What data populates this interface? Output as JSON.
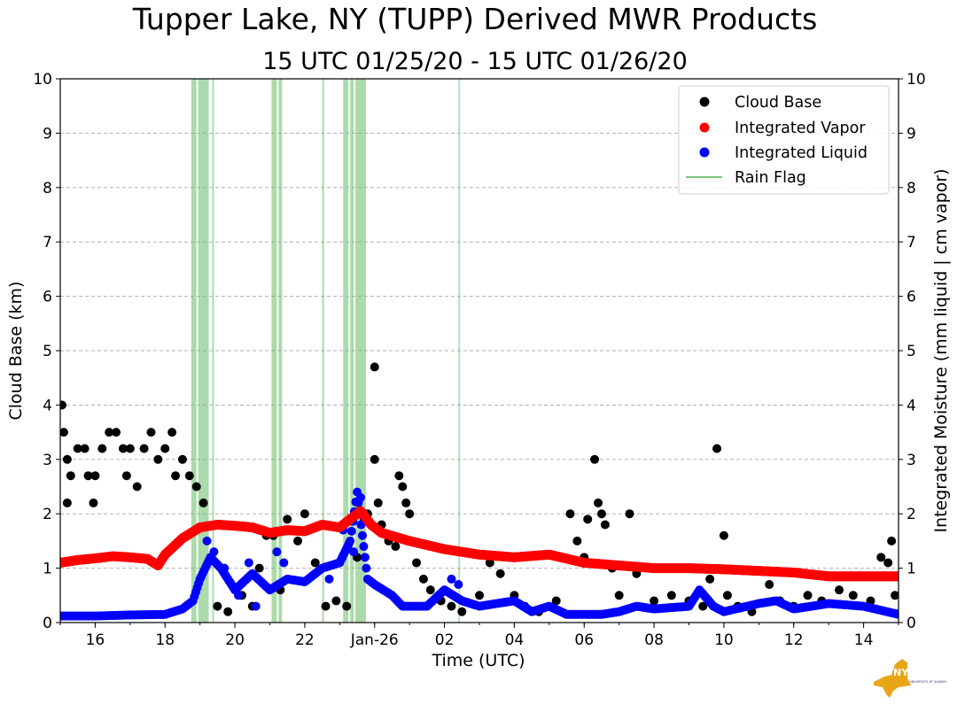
{
  "chart_data": {
    "type": "scatter",
    "title": "Tupper Lake, NY (TUPP) Derived MWR Products",
    "subtitle": "15 UTC 01/25/20 - 15 UTC 01/26/20",
    "xlabel": "Time (UTC)",
    "ylabel": "Cloud Base (km)",
    "ylabel_right": "Integrated Moisture (mm liquid | cm vapor)",
    "x_range_hours_utc": [
      15,
      39
    ],
    "ylim": [
      0,
      10
    ],
    "ylim_right": [
      0,
      10
    ],
    "grid": "horizontal dashed",
    "legend_position": "top-right",
    "x_ticks": [
      {
        "hour": 16,
        "label": "16"
      },
      {
        "hour": 18,
        "label": "18"
      },
      {
        "hour": 20,
        "label": "20"
      },
      {
        "hour": 22,
        "label": "22"
      },
      {
        "hour": 24,
        "label": "Jan-26"
      },
      {
        "hour": 26,
        "label": "02"
      },
      {
        "hour": 28,
        "label": "04"
      },
      {
        "hour": 30,
        "label": "06"
      },
      {
        "hour": 32,
        "label": "08"
      },
      {
        "hour": 34,
        "label": "10"
      },
      {
        "hour": 36,
        "label": "12"
      },
      {
        "hour": 38,
        "label": "14"
      }
    ],
    "y_ticks": [
      "0",
      "1",
      "2",
      "3",
      "4",
      "5",
      "6",
      "7",
      "8",
      "9",
      "10"
    ],
    "series": [
      {
        "name": "Cloud Base",
        "color": "#000000",
        "marker": "circle",
        "points": [
          [
            15.05,
            4.0
          ],
          [
            15.1,
            3.5
          ],
          [
            15.2,
            3.0
          ],
          [
            15.3,
            2.7
          ],
          [
            15.2,
            2.2
          ],
          [
            15.5,
            3.2
          ],
          [
            15.7,
            3.2
          ],
          [
            15.8,
            2.7
          ],
          [
            16.0,
            2.7
          ],
          [
            15.95,
            2.2
          ],
          [
            16.2,
            3.2
          ],
          [
            16.4,
            3.5
          ],
          [
            16.6,
            3.5
          ],
          [
            16.8,
            3.2
          ],
          [
            17.0,
            3.2
          ],
          [
            16.9,
            2.7
          ],
          [
            17.2,
            2.5
          ],
          [
            17.4,
            3.2
          ],
          [
            17.6,
            3.5
          ],
          [
            17.8,
            3.0
          ],
          [
            18.0,
            3.2
          ],
          [
            18.2,
            3.5
          ],
          [
            18.3,
            2.7
          ],
          [
            18.5,
            3.0
          ],
          [
            18.7,
            2.7
          ],
          [
            18.9,
            2.5
          ],
          [
            19.1,
            2.2
          ],
          [
            19.5,
            0.3
          ],
          [
            19.8,
            0.2
          ],
          [
            20.2,
            0.5
          ],
          [
            20.5,
            0.3
          ],
          [
            20.7,
            1.0
          ],
          [
            20.9,
            1.6
          ],
          [
            21.1,
            1.6
          ],
          [
            21.3,
            0.6
          ],
          [
            21.5,
            1.9
          ],
          [
            21.8,
            1.5
          ],
          [
            22.0,
            2.0
          ],
          [
            22.3,
            1.1
          ],
          [
            22.6,
            0.3
          ],
          [
            22.9,
            0.4
          ],
          [
            23.2,
            0.3
          ],
          [
            23.5,
            1.2
          ],
          [
            23.8,
            2.0
          ],
          [
            24.0,
            4.7
          ],
          [
            24.0,
            3.0
          ],
          [
            24.1,
            2.2
          ],
          [
            24.2,
            1.8
          ],
          [
            24.4,
            1.5
          ],
          [
            24.6,
            1.4
          ],
          [
            24.7,
            2.7
          ],
          [
            24.8,
            2.5
          ],
          [
            24.9,
            2.2
          ],
          [
            25.0,
            2.0
          ],
          [
            25.2,
            1.1
          ],
          [
            25.4,
            0.8
          ],
          [
            25.6,
            0.6
          ],
          [
            25.9,
            0.4
          ],
          [
            26.2,
            0.3
          ],
          [
            26.5,
            0.2
          ],
          [
            27.0,
            0.5
          ],
          [
            27.3,
            1.1
          ],
          [
            27.6,
            0.9
          ],
          [
            28.0,
            0.5
          ],
          [
            28.3,
            0.3
          ],
          [
            28.7,
            0.2
          ],
          [
            29.2,
            0.4
          ],
          [
            29.6,
            2.0
          ],
          [
            29.8,
            1.5
          ],
          [
            30.0,
            1.2
          ],
          [
            30.1,
            1.9
          ],
          [
            30.3,
            3.0
          ],
          [
            30.4,
            2.2
          ],
          [
            30.5,
            2.0
          ],
          [
            30.6,
            1.8
          ],
          [
            30.8,
            1.0
          ],
          [
            31.0,
            0.5
          ],
          [
            31.3,
            2.0
          ],
          [
            31.5,
            0.9
          ],
          [
            32.0,
            0.4
          ],
          [
            32.5,
            0.5
          ],
          [
            33.0,
            0.4
          ],
          [
            33.4,
            0.3
          ],
          [
            33.6,
            0.8
          ],
          [
            33.8,
            3.2
          ],
          [
            34.0,
            1.6
          ],
          [
            34.1,
            0.5
          ],
          [
            34.4,
            0.3
          ],
          [
            34.8,
            0.2
          ],
          [
            35.3,
            0.7
          ],
          [
            35.6,
            0.4
          ],
          [
            36.0,
            0.3
          ],
          [
            36.4,
            0.5
          ],
          [
            36.8,
            0.4
          ],
          [
            37.3,
            0.6
          ],
          [
            37.7,
            0.5
          ],
          [
            38.2,
            0.4
          ],
          [
            38.5,
            1.2
          ],
          [
            38.7,
            1.1
          ],
          [
            38.8,
            1.5
          ],
          [
            38.9,
            0.5
          ]
        ]
      },
      {
        "name": "Integrated Vapor",
        "color": "#ff0000",
        "marker": "circle",
        "curve": [
          [
            15.0,
            1.1
          ],
          [
            15.5,
            1.15
          ],
          [
            16.0,
            1.18
          ],
          [
            16.5,
            1.22
          ],
          [
            17.0,
            1.2
          ],
          [
            17.5,
            1.17
          ],
          [
            17.8,
            1.05
          ],
          [
            18.0,
            1.25
          ],
          [
            18.5,
            1.55
          ],
          [
            19.0,
            1.75
          ],
          [
            19.5,
            1.8
          ],
          [
            20.0,
            1.78
          ],
          [
            20.5,
            1.75
          ],
          [
            21.0,
            1.65
          ],
          [
            21.5,
            1.7
          ],
          [
            22.0,
            1.68
          ],
          [
            22.5,
            1.8
          ],
          [
            23.0,
            1.75
          ],
          [
            23.3,
            1.9
          ],
          [
            23.6,
            2.05
          ],
          [
            23.9,
            1.8
          ],
          [
            24.2,
            1.65
          ],
          [
            25.0,
            1.5
          ],
          [
            26.0,
            1.35
          ],
          [
            27.0,
            1.25
          ],
          [
            28.0,
            1.2
          ],
          [
            29.0,
            1.25
          ],
          [
            30.0,
            1.1
          ],
          [
            31.0,
            1.05
          ],
          [
            32.0,
            1.0
          ],
          [
            33.0,
            1.0
          ],
          [
            34.0,
            0.98
          ],
          [
            35.0,
            0.95
          ],
          [
            36.0,
            0.92
          ],
          [
            37.0,
            0.85
          ],
          [
            38.0,
            0.85
          ],
          [
            39.0,
            0.85
          ]
        ]
      },
      {
        "name": "Integrated Liquid",
        "color": "#0000ff",
        "marker": "circle",
        "curve": [
          [
            15.0,
            0.12
          ],
          [
            16.0,
            0.12
          ],
          [
            17.0,
            0.14
          ],
          [
            18.0,
            0.15
          ],
          [
            18.5,
            0.25
          ],
          [
            18.8,
            0.4
          ],
          [
            19.0,
            0.8
          ],
          [
            19.3,
            1.2
          ],
          [
            19.6,
            1.0
          ],
          [
            20.0,
            0.6
          ],
          [
            20.5,
            0.9
          ],
          [
            21.0,
            0.6
          ],
          [
            21.5,
            0.8
          ],
          [
            22.0,
            0.75
          ],
          [
            22.5,
            1.0
          ],
          [
            23.0,
            1.1
          ],
          [
            23.3,
            1.5
          ],
          [
            23.5,
            2.4
          ],
          [
            23.8,
            0.8
          ],
          [
            24.0,
            0.7
          ],
          [
            24.5,
            0.5
          ],
          [
            24.8,
            0.3
          ],
          [
            25.5,
            0.3
          ],
          [
            26.0,
            0.6
          ],
          [
            26.5,
            0.4
          ],
          [
            27.0,
            0.3
          ],
          [
            28.0,
            0.4
          ],
          [
            28.5,
            0.2
          ],
          [
            29.0,
            0.3
          ],
          [
            29.5,
            0.15
          ],
          [
            30.5,
            0.15
          ],
          [
            31.0,
            0.2
          ],
          [
            31.5,
            0.3
          ],
          [
            32.0,
            0.25
          ],
          [
            33.0,
            0.3
          ],
          [
            33.3,
            0.6
          ],
          [
            33.7,
            0.3
          ],
          [
            34.0,
            0.2
          ],
          [
            35.0,
            0.35
          ],
          [
            35.5,
            0.4
          ],
          [
            36.0,
            0.25
          ],
          [
            37.0,
            0.35
          ],
          [
            38.0,
            0.3
          ],
          [
            39.0,
            0.15
          ]
        ],
        "extra_points": [
          [
            19.2,
            1.5
          ],
          [
            19.4,
            1.3
          ],
          [
            19.7,
            1.0
          ],
          [
            20.1,
            0.5
          ],
          [
            20.4,
            1.1
          ],
          [
            20.6,
            0.3
          ],
          [
            21.2,
            1.3
          ],
          [
            21.4,
            1.1
          ],
          [
            22.3,
            0.9
          ],
          [
            22.7,
            0.8
          ],
          [
            23.1,
            1.7
          ],
          [
            23.4,
            1.3
          ],
          [
            23.6,
            2.3
          ],
          [
            23.7,
            1.9
          ],
          [
            26.2,
            0.8
          ],
          [
            26.4,
            0.7
          ]
        ]
      },
      {
        "name": "Rain Flag",
        "color": "#66bb66",
        "marker": "line",
        "bands_hours": [
          [
            18.75,
            18.9
          ],
          [
            18.95,
            19.25
          ],
          [
            19.35,
            19.4
          ],
          [
            21.05,
            21.2
          ],
          [
            21.25,
            21.35
          ],
          [
            22.5,
            22.55
          ],
          [
            23.1,
            23.25
          ],
          [
            23.3,
            23.4
          ],
          [
            23.45,
            23.75
          ],
          [
            26.4,
            26.42
          ]
        ]
      }
    ]
  },
  "logo": {
    "text": "NYS Mesonet",
    "subtext": "UNIVERSITY AT ALBANY",
    "color": "#e8a517",
    "text_color": "#4b2e83"
  }
}
